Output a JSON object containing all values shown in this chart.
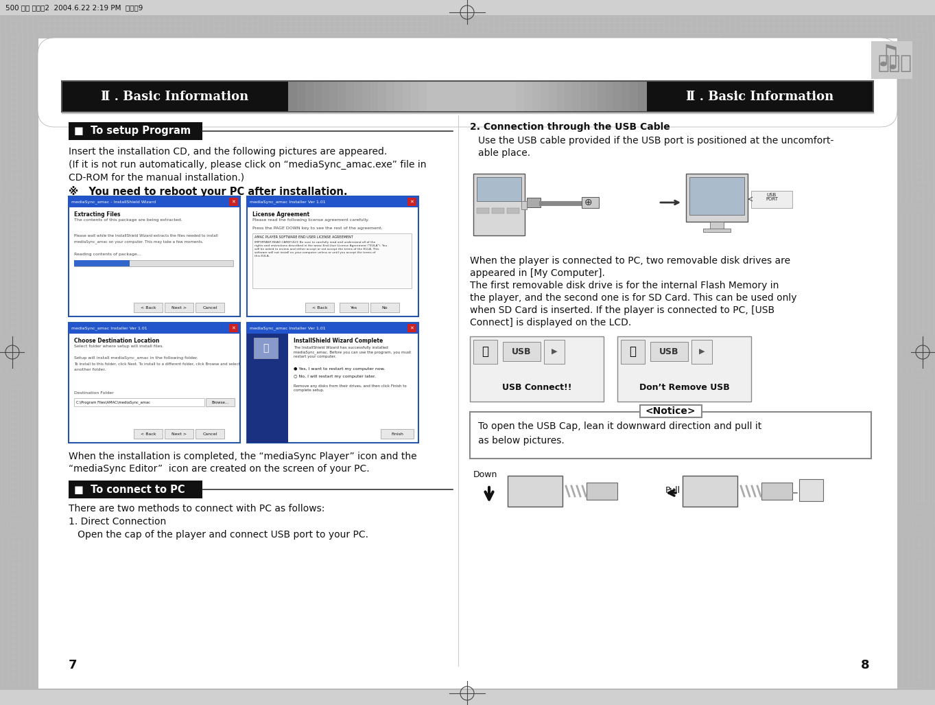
{
  "bg_color": "#b8b8b8",
  "page_bg": "#ffffff",
  "header_text": "Ⅱ . Basic Information",
  "header_text_color": "#ffffff",
  "left_section_header": "■  To setup Program",
  "left_section_header_bg": "#1a1a1a",
  "left_section_header_color": "#ffffff",
  "left_body_lines": [
    "Insert the installation CD, and the following pictures are appeared.",
    "(If it is not run automatically, please click on “mediaSync_amac.exe” file in",
    "CD-ROM for the manual installation.)",
    "※   You need to reboot your PC after installation."
  ],
  "left_bottom_header": "■  To connect to PC",
  "left_bottom_header_bg": "#1a1a1a",
  "left_bottom_header_color": "#ffffff",
  "left_bottom_lines": [
    "There are two methods to connect with PC as follows:",
    "1. Direct Connection",
    "   Open the cap of the player and connect USB port to your PC."
  ],
  "page_number_left": "7",
  "page_number_right": "8",
  "right_title": "2. Connection through the USB Cable",
  "right_body1": [
    "Use the USB cable provided if the USB port is positioned at the uncomfort-",
    "able place."
  ],
  "right_body2_lines": [
    "When the player is connected to PC, two removable disk drives are",
    "appeared in [My Computer].",
    "The first removable disk drive is for the internal Flash Memory in",
    "the player, and the second one is for SD Card. This can be used only",
    "when SD Card is inserted. If the player is connected to PC, [USB",
    "Connect] is displayed on the LCD."
  ],
  "usb_connect_label": "USB Connect!!",
  "dont_remove_label": "Don’t Remove USB",
  "notice_label": "<Notice>",
  "notice_body": "To open the USB Cap, lean it downward direction and pull it\nas below pictures.",
  "down_label": "Down",
  "pull_label": "Pull",
  "post_install_lines": [
    "When the installation is completed, the “mediaSync Player” icon and the",
    "“mediaSync Editor”  icon are created on the screen of your PC."
  ],
  "top_bar_text": "500 영문 메뉴얼2  2004.6.22 2:19 PM  페이지9",
  "screen1_title": "mediaSync_amac - InstallShield Wizard",
  "screen1_head": "Extracting Files",
  "screen1_sub": "The contents of this package are being extracted.",
  "screen2_title": "mediaSync_amac Installer Ver 1.01",
  "screen2_head": "License Agreement",
  "screen3_title": "mediaSync_amac Installer Ver 1.01",
  "screen3_head": "Choose Destination Location",
  "screen4_title": "mediaSync_amac Installer Ver 1.01",
  "screen4_head": "InstallShield Wizard Complete"
}
